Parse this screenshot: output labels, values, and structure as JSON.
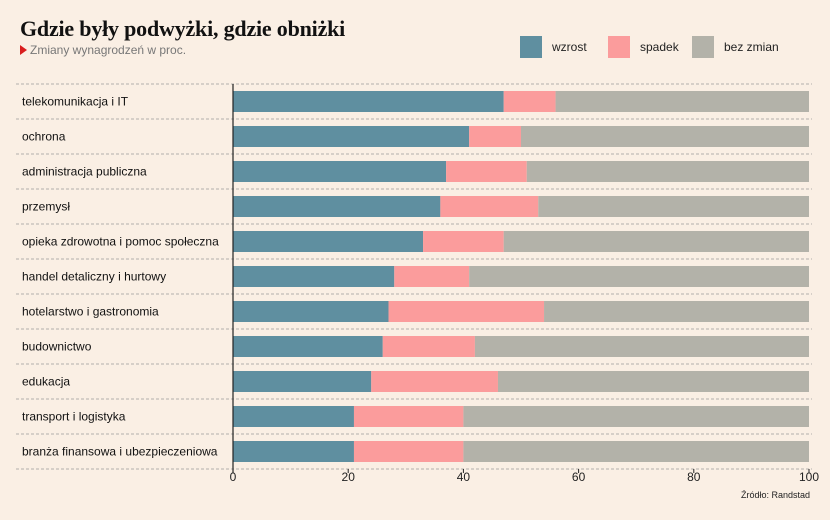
{
  "header": {
    "title": "Gdzie były podwyżki, gdzie obniżki",
    "subtitle": "Zmiany wynagrodzeń w proc."
  },
  "source": "Źródło: Randstad",
  "colors": {
    "wzrost": "#5f8fa0",
    "spadek": "#fb9c9c",
    "bez_zmian": "#b3b2a9",
    "background": "#faefe4",
    "grid": "#9a9a9a"
  },
  "chart_data": {
    "type": "bar",
    "orientation": "horizontal",
    "stacked": true,
    "categories": [
      "telekomunikacja i IT",
      "ochrona",
      "administracja publiczna",
      "przemysł",
      "opieka zdrowotna i pomoc społeczna",
      "handel detaliczny i hurtowy",
      "hotelarstwo i gastronomia",
      "budownictwo",
      "edukacja",
      "transport i logistyka",
      "branża finansowa i ubezpieczeniowa"
    ],
    "series": [
      {
        "name": "wzrost",
        "values": [
          47,
          41,
          37,
          36,
          33,
          28,
          27,
          26,
          24,
          21,
          21
        ]
      },
      {
        "name": "spadek",
        "values": [
          9,
          9,
          14,
          17,
          14,
          13,
          27,
          16,
          22,
          19,
          19
        ]
      },
      {
        "name": "bez zmian",
        "values": [
          44,
          50,
          49,
          47,
          53,
          59,
          46,
          58,
          54,
          60,
          60
        ]
      }
    ],
    "xlim": [
      0,
      100
    ],
    "xticks": [
      0,
      20,
      40,
      60,
      80,
      100
    ],
    "legend_position": "top-right",
    "grid": "dashed horizontal separators between rows"
  }
}
